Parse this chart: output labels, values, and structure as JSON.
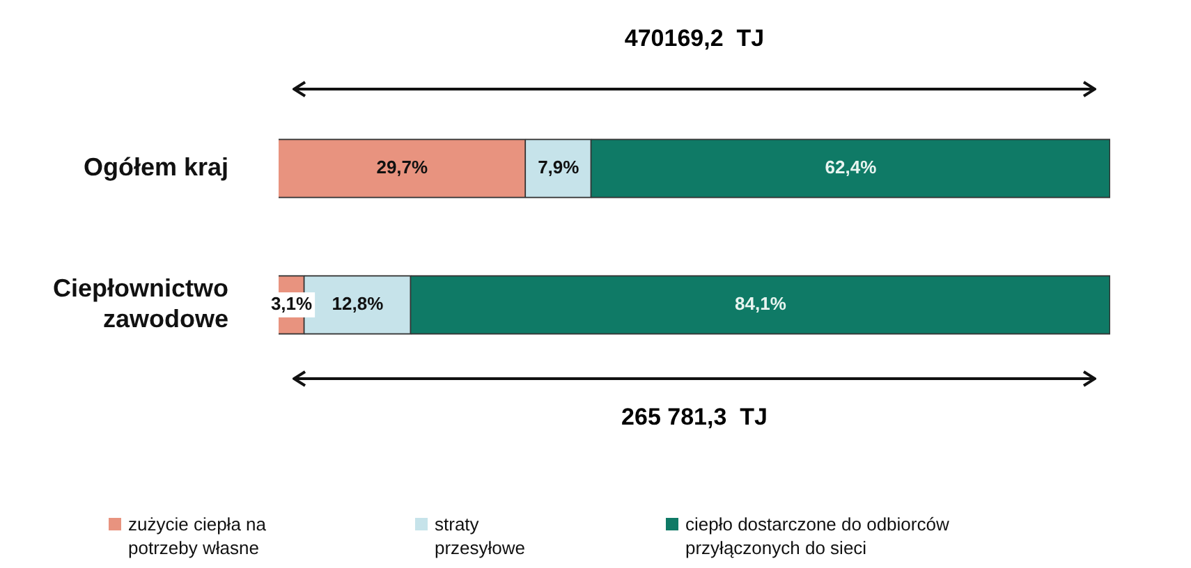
{
  "chart_data": {
    "type": "bar",
    "orientation": "horizontal",
    "stacked": true,
    "categories": [
      "Ogółem kraj",
      "Ciepłownictwo zawodowe"
    ],
    "series": [
      {
        "name": "zużycie ciepła na potrzeby własne",
        "color": "#e8937f",
        "values": [
          29.7,
          3.1
        ],
        "value_labels": [
          "29,7%",
          "3,1%"
        ]
      },
      {
        "name": "straty przesyłowe",
        "color": "#c6e3ea",
        "values": [
          7.9,
          12.8
        ],
        "value_labels": [
          "7,9%",
          "12,8%"
        ]
      },
      {
        "name": "ciepło dostarczone do odbiorców przyłączonych do sieci",
        "color": "#0f7a66",
        "values": [
          62.4,
          84.1
        ],
        "value_labels": [
          "62,4%",
          "84,1%"
        ]
      }
    ],
    "xlim": [
      0,
      100
    ],
    "tick_labels": "y",
    "legend": "bottom",
    "annotations": [
      "470169,2  TJ",
      "265 781,3  TJ"
    ]
  }
}
